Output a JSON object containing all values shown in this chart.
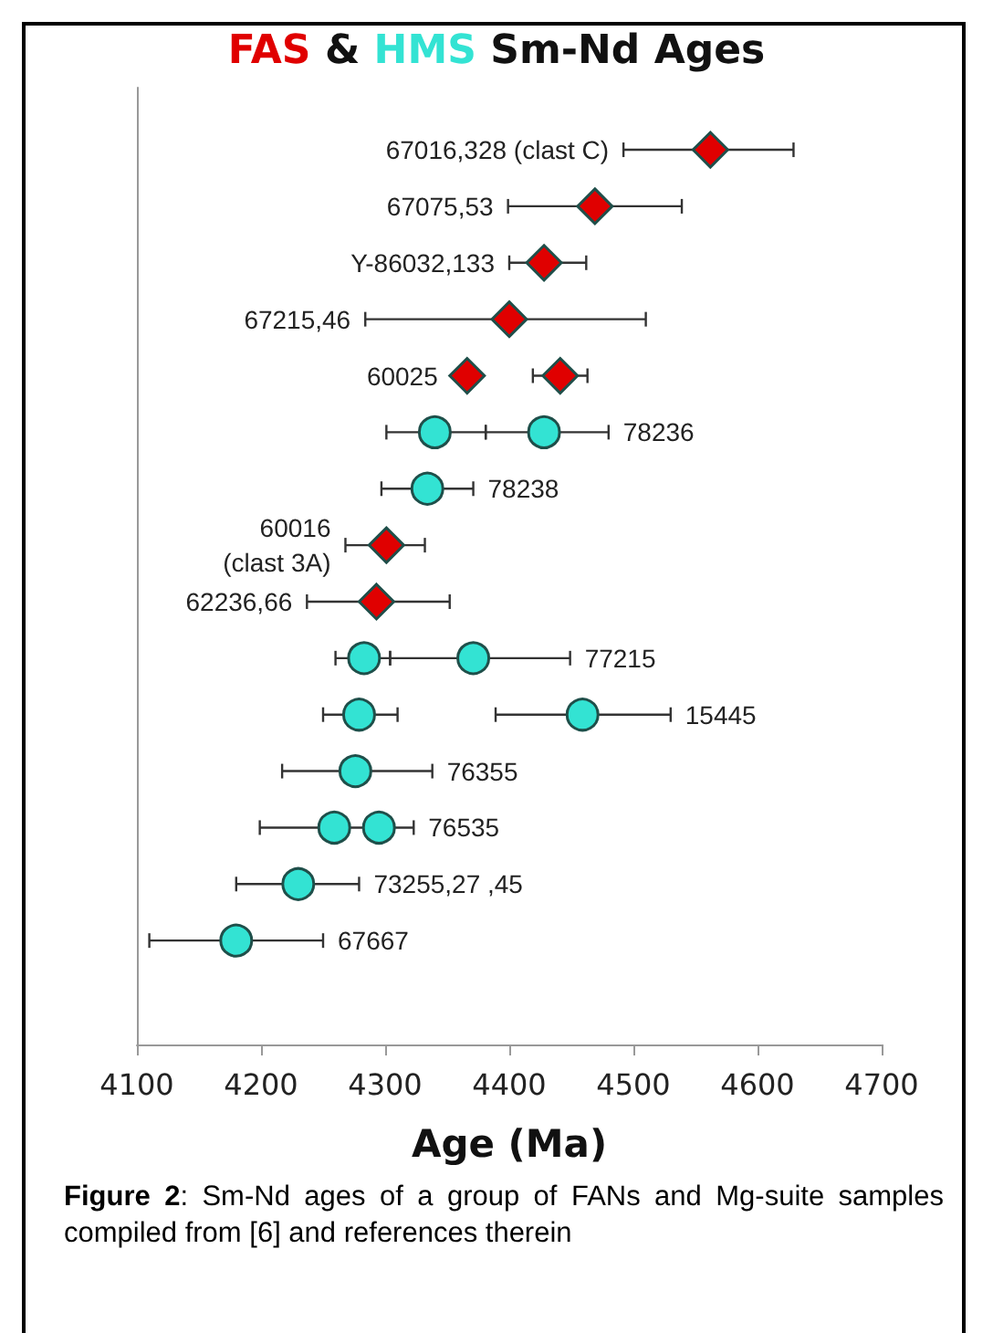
{
  "chart_data": {
    "type": "scatter",
    "orientation": "horizontal",
    "title": "FAS & HMS Sm-Nd Ages",
    "xlabel": "Age (Ma)",
    "categories": [
      "67016,328 (clast C)",
      "67075,53",
      "Y-86032,133",
      "67215,46",
      "60025",
      "78236",
      "78238",
      "60016\n(clast 3A)",
      "62236,66",
      "77215",
      "15445",
      "76355",
      "76535",
      "73255,27 ,45",
      "67667"
    ],
    "series": [
      {
        "color": "#e00000",
        "marker": "diamond",
        "values": [
          4562,
          4469,
          4428,
          4400,
          4366,
          null,
          null,
          4301,
          4293,
          null,
          null,
          null,
          null,
          null,
          null
        ],
        "errors": [
          [
            4492,
            4629
          ],
          [
            4399,
            4539
          ],
          [
            4400,
            4462
          ],
          [
            4284,
            4510
          ],
          null,
          null,
          null,
          [
            4268,
            4332
          ],
          [
            4237,
            4352
          ],
          null,
          null,
          null,
          null,
          null,
          null
        ]
      },
      {
        "color": "#e00000",
        "marker": "diamond",
        "values": [
          null,
          null,
          null,
          null,
          4441,
          null,
          null,
          null,
          null,
          null,
          null,
          null,
          null,
          null,
          null
        ],
        "errors": [
          null,
          null,
          null,
          null,
          [
            4419,
            4463
          ],
          null,
          null,
          null,
          null,
          null,
          null,
          null,
          null,
          null,
          null
        ]
      },
      {
        "color": "#33e3d3",
        "marker": "circle",
        "values": [
          null,
          null,
          null,
          null,
          null,
          4340,
          4334,
          null,
          null,
          4283,
          4279,
          4276,
          4259,
          4230,
          4180
        ],
        "errors": [
          null,
          null,
          null,
          null,
          null,
          [
            4301,
            4381
          ],
          [
            4297,
            4371
          ],
          null,
          null,
          [
            4260,
            4304
          ],
          [
            4250,
            4310
          ],
          [
            4217,
            4338
          ],
          null,
          [
            4180,
            4279
          ],
          [
            4110,
            4250
          ]
        ]
      },
      {
        "color": "#33e3d3",
        "marker": "circle",
        "values": [
          null,
          null,
          null,
          null,
          null,
          4428,
          null,
          null,
          null,
          4371,
          4459,
          null,
          4295,
          null,
          null
        ],
        "errors": [
          null,
          null,
          null,
          null,
          null,
          [
            4381,
            4480
          ],
          null,
          null,
          null,
          [
            4304,
            4449
          ],
          [
            4389,
            4530
          ],
          null,
          [
            4199,
            4323
          ],
          null,
          null
        ]
      }
    ],
    "xlim": [
      4100,
      4700
    ],
    "xticks": [
      4100,
      4200,
      4300,
      4400,
      4500,
      4600,
      4700
    ],
    "tick_labels": "x",
    "grid": false,
    "annotations": [
      "Figure 2: Sm-Nd ages of a group of FANs and Mg-suite samples compiled from [6] and references therein"
    ]
  }
}
